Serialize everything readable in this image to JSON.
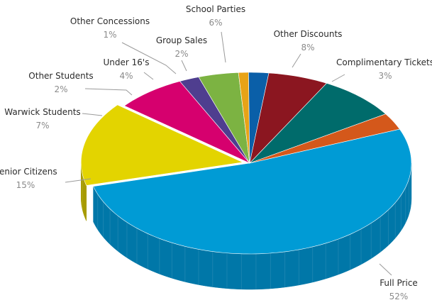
{
  "chart_data": {
    "type": "pie",
    "style": "3d-exploded-slice",
    "title": "",
    "slices": [
      {
        "label": "Full Price",
        "value": 52,
        "value_label": "52%",
        "color": "#009BD5",
        "side_color": "#0077A8"
      },
      {
        "label": "Senior Citizens",
        "value": 15,
        "value_label": "15%",
        "color": "#E3D400",
        "side_color": "#A79B00"
      },
      {
        "label": "Warwick Students",
        "value": 7,
        "value_label": "7%",
        "color": "#D6006E",
        "side_color": "#9E0051"
      },
      {
        "label": "Other Students",
        "value": 2,
        "value_label": "2%",
        "color": "#4F3E8F",
        "side_color": "#3A2D6A"
      },
      {
        "label": "Under 16's",
        "value": 4,
        "value_label": "4%",
        "color": "#7CB342",
        "side_color": "#5C8731"
      },
      {
        "label": "Other Concessions",
        "value": 1,
        "value_label": "1%",
        "color": "#E8A317",
        "side_color": "#AF7A0F"
      },
      {
        "label": "Group Sales",
        "value": 2,
        "value_label": "2%",
        "color": "#0A5FA8",
        "side_color": "#074479"
      },
      {
        "label": "School Parties",
        "value": 6,
        "value_label": "6%",
        "color": "#8B1620",
        "side_color": "#650F17"
      },
      {
        "label": "Other Discounts",
        "value": 8,
        "value_label": "8%",
        "color": "#006B6B",
        "side_color": "#004C4C"
      },
      {
        "label": "Complimentary Tickets",
        "value": 3,
        "value_label": "3%",
        "color": "#D4581B",
        "side_color": "#9C4013"
      }
    ]
  }
}
